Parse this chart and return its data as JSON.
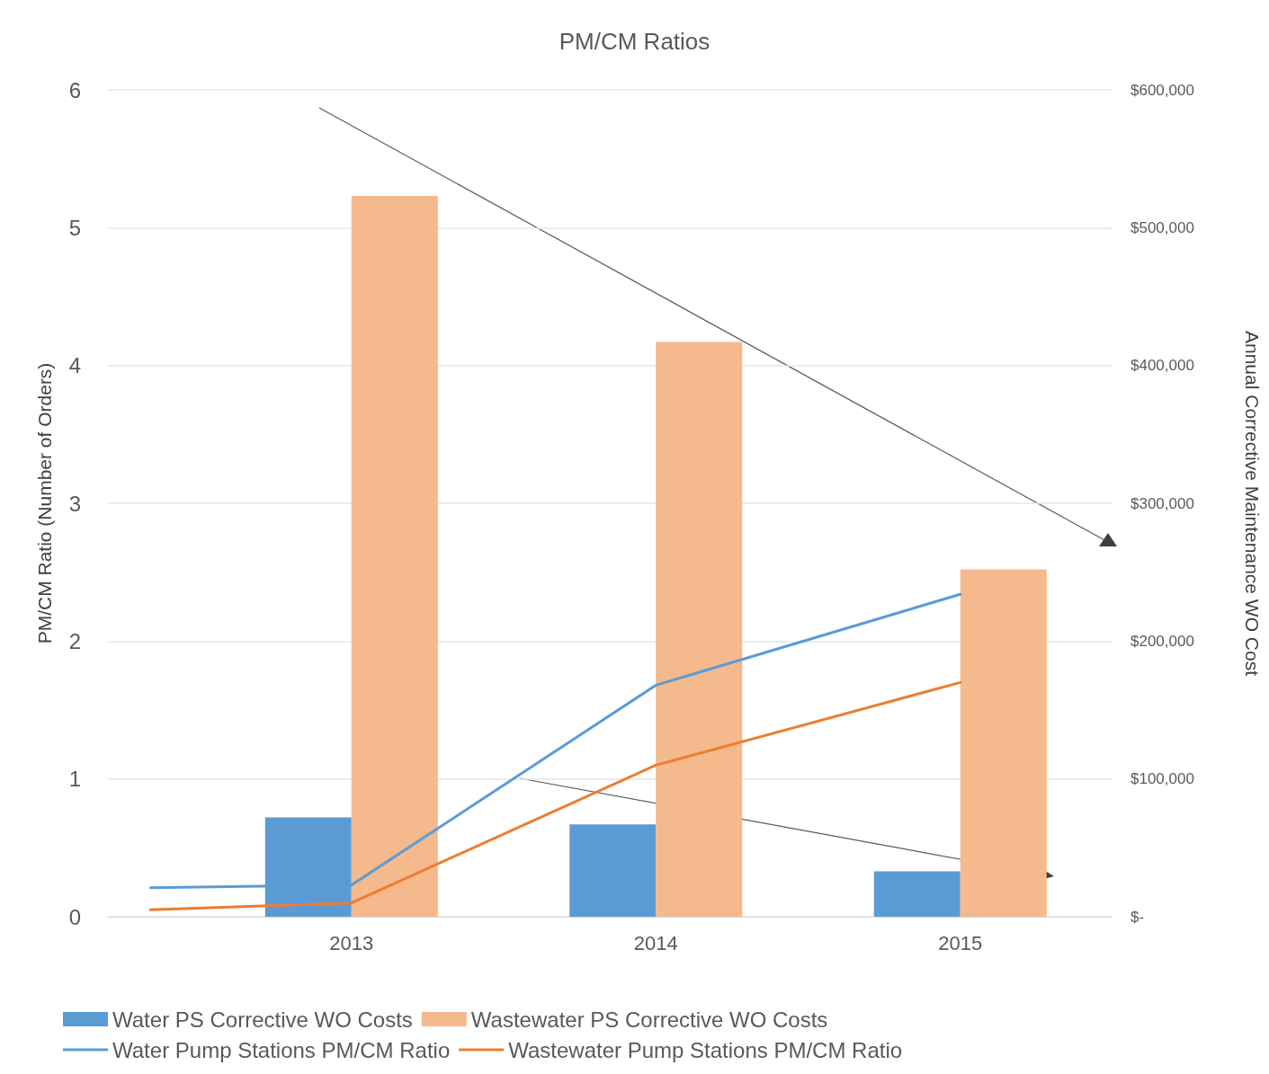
{
  "chart_data": {
    "type": "bar",
    "title": "PM/CM Ratios",
    "ylabel": "PM/CM Ratio (Number of Orders)",
    "y2label": "Annual Corrective Maintenance WO Cost",
    "x": [
      2013,
      2014,
      2015
    ],
    "xlim": [
      2012.2,
      2015.5
    ],
    "xticks": [
      2013,
      2014,
      2015
    ],
    "ylim": [
      0,
      6
    ],
    "yticks": [
      0,
      1,
      2,
      3,
      4,
      5,
      6
    ],
    "y2lim": [
      0,
      600000
    ],
    "y2ticks": [
      {
        "value": 0,
        "label": "$-"
      },
      {
        "value": 100000,
        "label": "$100,000"
      },
      {
        "value": 200000,
        "label": "$200,000"
      },
      {
        "value": 300000,
        "label": "$300,000"
      },
      {
        "value": 400000,
        "label": "$400,000"
      },
      {
        "value": 500000,
        "label": "$500,000"
      },
      {
        "value": 600000,
        "label": "$600,000"
      }
    ],
    "series": [
      {
        "name": "Water PS Corrective WO Costs",
        "axis": "y2",
        "color": "#5b9bd5",
        "values": [
          72000,
          67000,
          33000
        ]
      },
      {
        "name": "Wastewater PS Corrective WO Costs",
        "axis": "y2",
        "color": "#f4b98c",
        "values": [
          523000,
          417000,
          252000
        ]
      },
      {
        "name": "Water Pump Stations PM/CM Ratio",
        "type": "line",
        "color": "#5b9bd5",
        "x": [
          2012.34,
          2013,
          2014,
          2015
        ],
        "values": [
          0.21,
          0.23,
          1.68,
          2.34
        ]
      },
      {
        "name": "Wastewater Pump Stations PM/CM Ratio",
        "type": "line",
        "color": "#ed7d31",
        "x": [
          2012.34,
          2013,
          2014,
          2015
        ],
        "values": [
          0.05,
          0.1,
          1.1,
          1.7
        ]
      }
    ],
    "grid": "y",
    "legend": "bottom",
    "marker": "none",
    "line_style": "solid"
  }
}
